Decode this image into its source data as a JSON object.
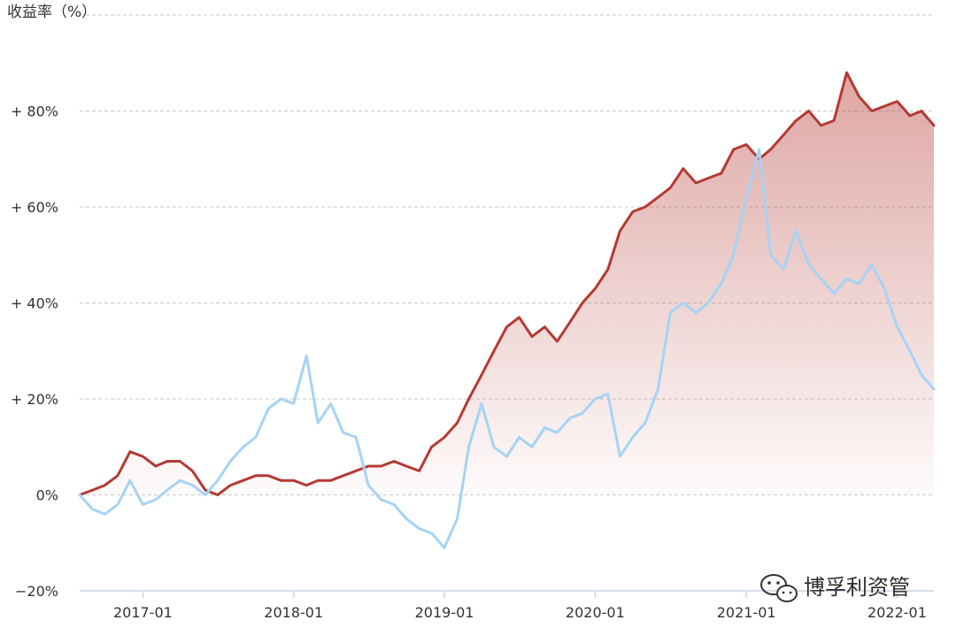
{
  "chart_data": {
    "type": "line",
    "ylabel": "收益率（%）",
    "ylim": [
      -20,
      100
    ],
    "yticks": [
      {
        "value": 80,
        "label": "+ 80%"
      },
      {
        "value": 60,
        "label": "+ 60%"
      },
      {
        "value": 40,
        "label": "+ 40%"
      },
      {
        "value": 20,
        "label": "+ 20%"
      },
      {
        "value": 0,
        "label": "0%"
      },
      {
        "value": -20,
        "label": "−20%"
      }
    ],
    "xlim": [
      "2016-08-01",
      "2022-03-31"
    ],
    "xticks": [
      {
        "value": "2017-01-01",
        "label": "2017-01"
      },
      {
        "value": "2018-01-01",
        "label": "2018-01"
      },
      {
        "value": "2019-01-01",
        "label": "2019-01"
      },
      {
        "value": "2020-01-01",
        "label": "2020-01"
      },
      {
        "value": "2021-01-01",
        "label": "2021-01"
      },
      {
        "value": "2022-01-01",
        "label": "2022-01"
      }
    ],
    "grid": true,
    "series": [
      {
        "color": "#b43a33",
        "fill": "gradient",
        "points": [
          [
            "2016-08-01",
            0
          ],
          [
            "2016-09-01",
            1
          ],
          [
            "2016-10-01",
            2
          ],
          [
            "2016-11-01",
            4
          ],
          [
            "2016-12-01",
            9
          ],
          [
            "2017-01-01",
            8
          ],
          [
            "2017-02-01",
            6
          ],
          [
            "2017-03-01",
            7
          ],
          [
            "2017-04-01",
            7
          ],
          [
            "2017-05-01",
            5
          ],
          [
            "2017-06-01",
            1
          ],
          [
            "2017-07-01",
            0
          ],
          [
            "2017-08-01",
            2
          ],
          [
            "2017-09-01",
            3
          ],
          [
            "2017-10-01",
            4
          ],
          [
            "2017-11-01",
            4
          ],
          [
            "2017-12-01",
            3
          ],
          [
            "2018-01-01",
            3
          ],
          [
            "2018-02-01",
            2
          ],
          [
            "2018-03-01",
            3
          ],
          [
            "2018-04-01",
            3
          ],
          [
            "2018-05-01",
            4
          ],
          [
            "2018-06-01",
            5
          ],
          [
            "2018-07-01",
            6
          ],
          [
            "2018-08-01",
            6
          ],
          [
            "2018-09-01",
            7
          ],
          [
            "2018-10-01",
            6
          ],
          [
            "2018-11-01",
            5
          ],
          [
            "2018-12-01",
            10
          ],
          [
            "2019-01-01",
            12
          ],
          [
            "2019-02-01",
            15
          ],
          [
            "2019-03-01",
            20
          ],
          [
            "2019-04-01",
            25
          ],
          [
            "2019-05-01",
            30
          ],
          [
            "2019-06-01",
            35
          ],
          [
            "2019-07-01",
            37
          ],
          [
            "2019-08-01",
            33
          ],
          [
            "2019-09-01",
            35
          ],
          [
            "2019-10-01",
            32
          ],
          [
            "2019-11-01",
            36
          ],
          [
            "2019-12-01",
            40
          ],
          [
            "2020-01-01",
            43
          ],
          [
            "2020-02-01",
            47
          ],
          [
            "2020-03-01",
            55
          ],
          [
            "2020-04-01",
            59
          ],
          [
            "2020-05-01",
            60
          ],
          [
            "2020-06-01",
            62
          ],
          [
            "2020-07-01",
            64
          ],
          [
            "2020-08-01",
            68
          ],
          [
            "2020-09-01",
            65
          ],
          [
            "2020-10-01",
            66
          ],
          [
            "2020-11-01",
            67
          ],
          [
            "2020-12-01",
            72
          ],
          [
            "2021-01-01",
            73
          ],
          [
            "2021-02-01",
            70
          ],
          [
            "2021-03-01",
            72
          ],
          [
            "2021-04-01",
            75
          ],
          [
            "2021-05-01",
            78
          ],
          [
            "2021-06-01",
            80
          ],
          [
            "2021-07-01",
            77
          ],
          [
            "2021-08-01",
            78
          ],
          [
            "2021-09-01",
            88
          ],
          [
            "2021-10-01",
            83
          ],
          [
            "2021-11-01",
            80
          ],
          [
            "2021-12-01",
            81
          ],
          [
            "2022-01-01",
            82
          ],
          [
            "2022-02-01",
            79
          ],
          [
            "2022-03-01",
            80
          ],
          [
            "2022-03-31",
            77
          ]
        ]
      },
      {
        "color": "#a6d3f5",
        "fill": "none",
        "points": [
          [
            "2016-08-01",
            0
          ],
          [
            "2016-09-01",
            -3
          ],
          [
            "2016-10-01",
            -4
          ],
          [
            "2016-11-01",
            -2
          ],
          [
            "2016-12-01",
            3
          ],
          [
            "2017-01-01",
            -2
          ],
          [
            "2017-02-01",
            -1
          ],
          [
            "2017-03-01",
            1
          ],
          [
            "2017-04-01",
            3
          ],
          [
            "2017-05-01",
            2
          ],
          [
            "2017-06-01",
            0
          ],
          [
            "2017-07-01",
            3
          ],
          [
            "2017-08-01",
            7
          ],
          [
            "2017-09-01",
            10
          ],
          [
            "2017-10-01",
            12
          ],
          [
            "2017-11-01",
            18
          ],
          [
            "2017-12-01",
            20
          ],
          [
            "2018-01-01",
            19
          ],
          [
            "2018-02-01",
            29
          ],
          [
            "2018-03-01",
            15
          ],
          [
            "2018-04-01",
            19
          ],
          [
            "2018-05-01",
            13
          ],
          [
            "2018-06-01",
            12
          ],
          [
            "2018-07-01",
            2
          ],
          [
            "2018-08-01",
            -1
          ],
          [
            "2018-09-01",
            -2
          ],
          [
            "2018-10-01",
            -5
          ],
          [
            "2018-11-01",
            -7
          ],
          [
            "2018-12-01",
            -8
          ],
          [
            "2019-01-01",
            -11
          ],
          [
            "2019-02-01",
            -5
          ],
          [
            "2019-03-01",
            10
          ],
          [
            "2019-04-01",
            19
          ],
          [
            "2019-05-01",
            10
          ],
          [
            "2019-06-01",
            8
          ],
          [
            "2019-07-01",
            12
          ],
          [
            "2019-08-01",
            10
          ],
          [
            "2019-09-01",
            14
          ],
          [
            "2019-10-01",
            13
          ],
          [
            "2019-11-01",
            16
          ],
          [
            "2019-12-01",
            17
          ],
          [
            "2020-01-01",
            20
          ],
          [
            "2020-02-01",
            21
          ],
          [
            "2020-03-01",
            8
          ],
          [
            "2020-04-01",
            12
          ],
          [
            "2020-05-01",
            15
          ],
          [
            "2020-06-01",
            22
          ],
          [
            "2020-07-01",
            38
          ],
          [
            "2020-08-01",
            40
          ],
          [
            "2020-09-01",
            38
          ],
          [
            "2020-10-01",
            40
          ],
          [
            "2020-11-01",
            44
          ],
          [
            "2020-12-01",
            50
          ],
          [
            "2021-01-01",
            62
          ],
          [
            "2021-02-01",
            72
          ],
          [
            "2021-03-01",
            50
          ],
          [
            "2021-04-01",
            47
          ],
          [
            "2021-05-01",
            55
          ],
          [
            "2021-06-01",
            48
          ],
          [
            "2021-07-01",
            45
          ],
          [
            "2021-08-01",
            42
          ],
          [
            "2021-09-01",
            45
          ],
          [
            "2021-10-01",
            44
          ],
          [
            "2021-11-01",
            48
          ],
          [
            "2021-12-01",
            43
          ],
          [
            "2022-01-01",
            35
          ],
          [
            "2022-02-01",
            30
          ],
          [
            "2022-03-01",
            25
          ],
          [
            "2022-03-31",
            22
          ]
        ]
      }
    ]
  },
  "watermark": {
    "icon": "wechat-icon",
    "text": "博孚利资管"
  }
}
